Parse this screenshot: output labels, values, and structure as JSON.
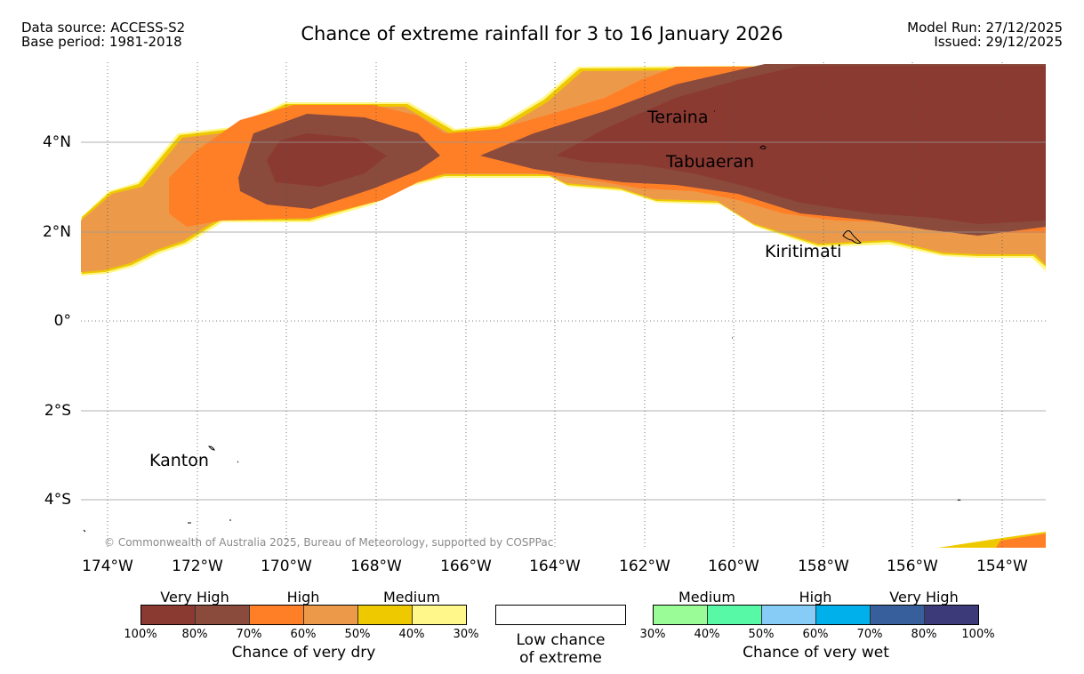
{
  "header": {
    "data_source": "Data source: ACCESS-S2",
    "base_period": "Base period: 1981-2018",
    "title": "Chance of extreme rainfall for 3 to 16 January 2026",
    "model_run": "Model Run: 27/12/2025",
    "issued": "Issued: 29/12/2025"
  },
  "map": {
    "lat_labels": [
      "4°N",
      "2°N",
      "0°",
      "2°S",
      "4°S"
    ],
    "lon_labels": [
      "174°W",
      "172°W",
      "170°W",
      "168°W",
      "166°W",
      "164°W",
      "162°W",
      "160°W",
      "158°W",
      "156°W",
      "154°W"
    ],
    "places": {
      "teraina": "Teraina",
      "tabuaeran": "Tabuaeran",
      "kiritimati": "Kiritimati",
      "kanton": "Kanton"
    },
    "copyright": "© Commonwealth of Australia 2025, Bureau of Meteorology, supported by COSPPac"
  },
  "colors": {
    "dry_100_80": "#8b3a32",
    "dry_80_70": "#8a4a3c",
    "dry_70_60": "#ff7f27",
    "dry_60_50": "#ec9a4a",
    "dry_50_40": "#eec900",
    "dry_40_30": "#fff78a",
    "wet_30_40": "#9afc96",
    "wet_40_50": "#57f9a6",
    "wet_50_60": "#87cbf7",
    "wet_60_70": "#00b0ea",
    "wet_70_80": "#365f9c",
    "wet_80_100": "#3c3a78"
  },
  "legend": {
    "dry": {
      "headers": [
        "Very High",
        "High",
        "Medium"
      ],
      "ticks": [
        "100%",
        "80%",
        "70%",
        "60%",
        "50%",
        "40%",
        "30%"
      ],
      "title": "Chance of very dry"
    },
    "low": {
      "line1": "Low chance",
      "line2": "of extreme"
    },
    "wet": {
      "headers": [
        "Medium",
        "High",
        "Very High"
      ],
      "ticks": [
        "30%",
        "40%",
        "50%",
        "60%",
        "70%",
        "80%",
        "100%"
      ],
      "title": "Chance of very wet"
    }
  }
}
